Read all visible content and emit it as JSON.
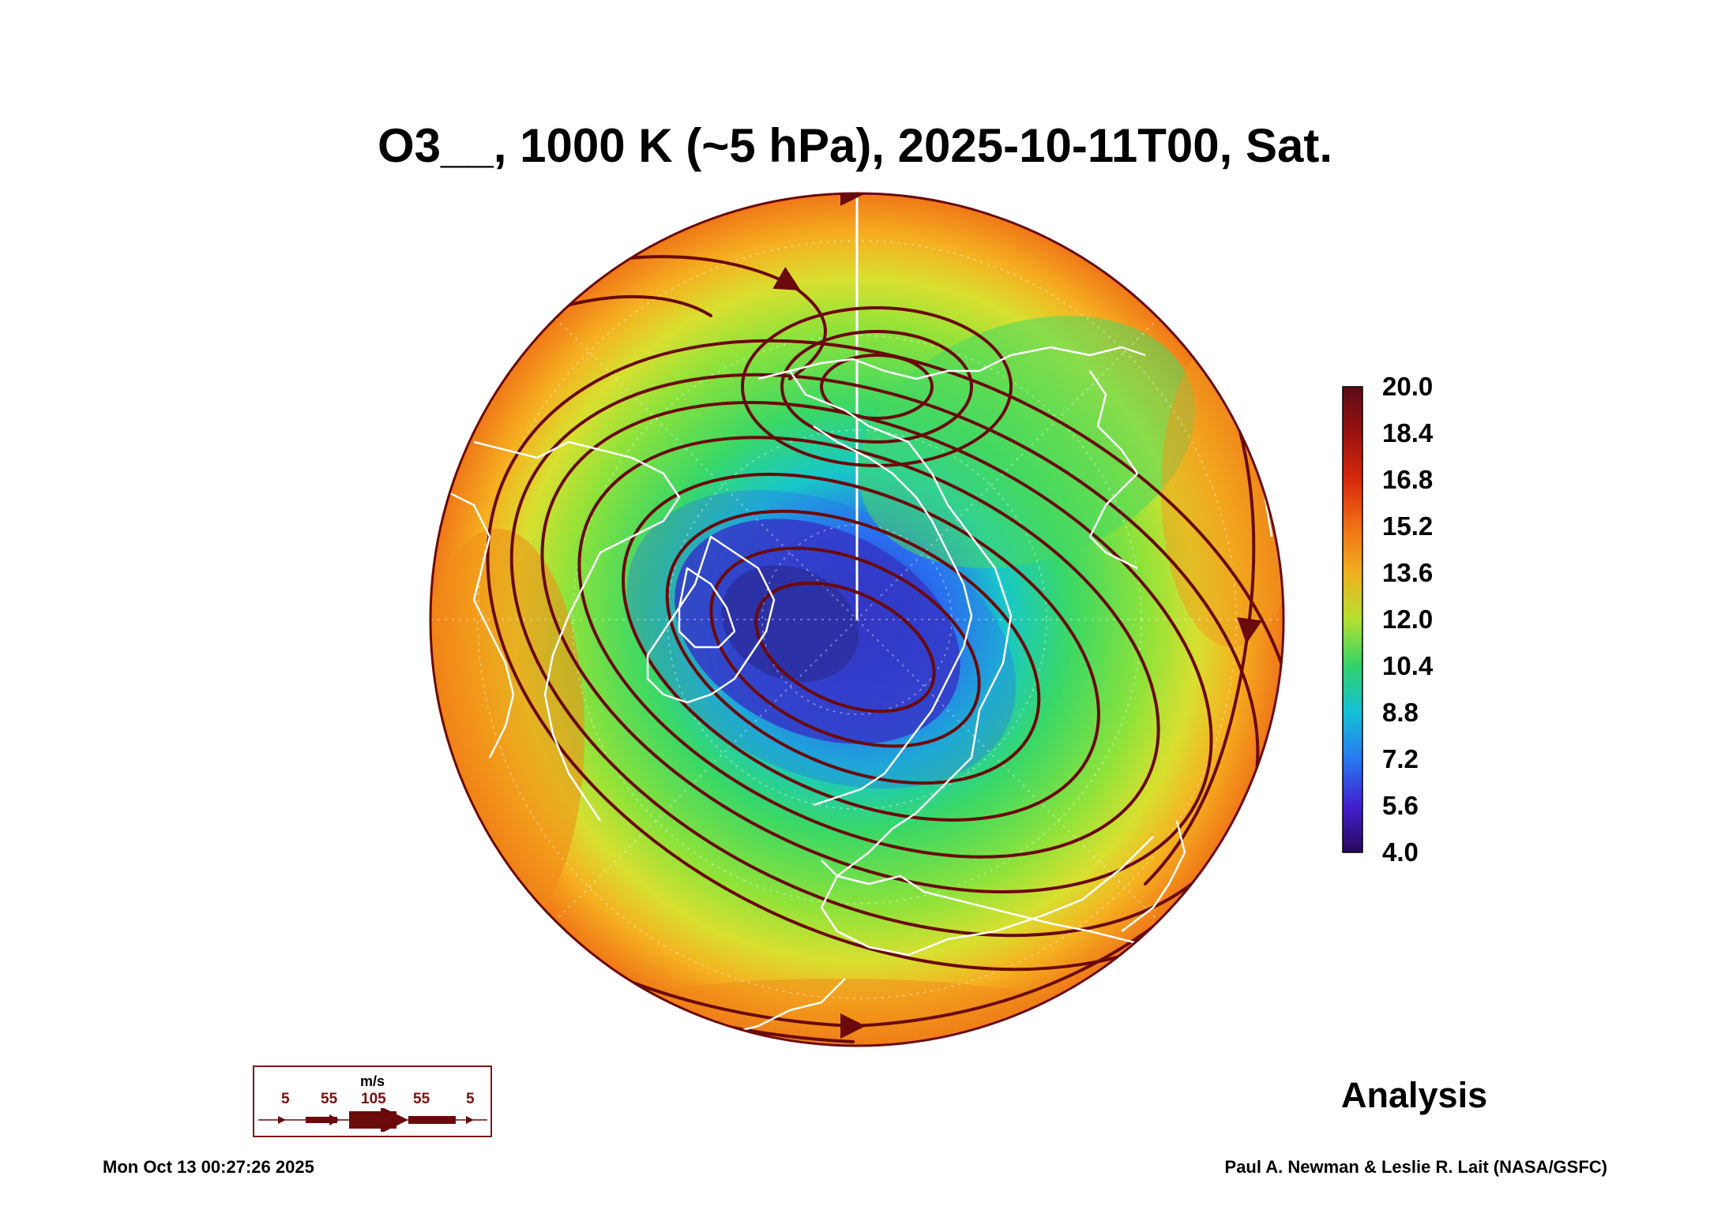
{
  "title": "O3__, 1000 K (~5 hPa), 2025-10-11T00, Sat.",
  "colorbar": {
    "min": 4.0,
    "max": 20.0,
    "labels": [
      "20.0",
      "18.4",
      "16.8",
      "15.2",
      "13.6",
      "12.0",
      "10.4",
      "8.8",
      "7.2",
      "5.6",
      "4.0"
    ],
    "colors": [
      "#5a0a14",
      "#8a1010",
      "#c81e0a",
      "#f05a14",
      "#f5a01e",
      "#e6e628",
      "#a0e632",
      "#32d264",
      "#14bedc",
      "#2882f0",
      "#3c3cf0",
      "#3c14b4",
      "#280a5a"
    ]
  },
  "wind_legend": {
    "unit": "m/s",
    "speeds": [
      "5",
      "55",
      "105",
      "55",
      "5"
    ],
    "color": "#6a0a0a"
  },
  "analysis_label": "Analysis",
  "timestamp": "Mon Oct 13 00:27:26 2025",
  "credit": "Paul A. Newman & Leslie R. Lait (NASA/GSFC)"
}
